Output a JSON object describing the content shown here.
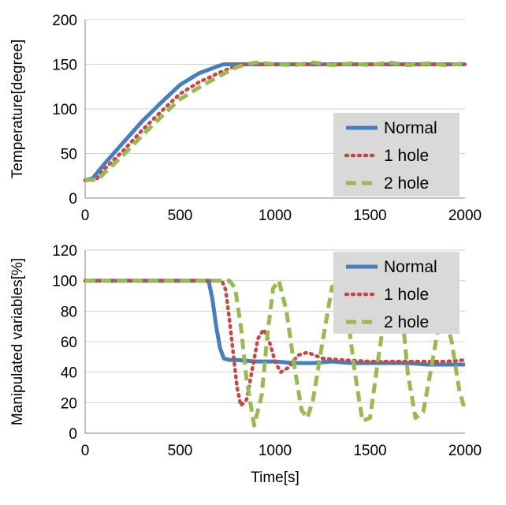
{
  "chart_data": [
    {
      "type": "line",
      "title": "",
      "xlabel": "",
      "ylabel": "Temperature[degree]",
      "xlim": [
        0,
        2000
      ],
      "ylim": [
        0,
        200
      ],
      "xticks": [
        0,
        500,
        1000,
        1500,
        2000
      ],
      "yticks": [
        0,
        50,
        100,
        150,
        200
      ],
      "grid": "horizontal",
      "legend_position": "bottom-right",
      "series": [
        {
          "name": "Normal",
          "color": "#4a7ebb",
          "style": "solid",
          "x": [
            0,
            40,
            100,
            200,
            300,
            400,
            500,
            600,
            700,
            730,
            760,
            800,
            1000,
            1500,
            2000
          ],
          "y": [
            20,
            22,
            38,
            62,
            86,
            107,
            127,
            140,
            148,
            150,
            150,
            150,
            150,
            150,
            150
          ]
        },
        {
          "name": "1 hole",
          "color": "#be4b48",
          "style": "dotted",
          "x": [
            0,
            60,
            100,
            200,
            300,
            400,
            500,
            600,
            700,
            780,
            820,
            900,
            1000,
            1500,
            2000
          ],
          "y": [
            20,
            21,
            32,
            53,
            76,
            97,
            117,
            130,
            140,
            147,
            150,
            150,
            150,
            150,
            150
          ]
        },
        {
          "name": "2 hole",
          "color": "#98b954",
          "style": "dashed",
          "x": [
            0,
            70,
            100,
            200,
            300,
            400,
            500,
            600,
            700,
            800,
            850,
            900,
            1000,
            1100,
            1200,
            1300,
            1400,
            1500,
            1600,
            1700,
            1800,
            1900,
            2000
          ],
          "y": [
            20,
            21,
            28,
            48,
            70,
            91,
            111,
            124,
            136,
            147,
            150,
            152,
            150,
            149,
            152,
            149,
            151,
            149,
            152,
            149,
            151,
            149,
            151
          ]
        }
      ]
    },
    {
      "type": "line",
      "title": "",
      "xlabel": "Time[s]",
      "ylabel": "Manipulated variables[%]",
      "xlim": [
        0,
        2000
      ],
      "ylim": [
        0,
        120
      ],
      "xticks": [
        0,
        500,
        1000,
        1500,
        2000
      ],
      "yticks": [
        0,
        20,
        40,
        60,
        80,
        100,
        120
      ],
      "grid": "horizontal",
      "legend_position": "top-right",
      "series": [
        {
          "name": "Normal",
          "color": "#4a7ebb",
          "style": "solid",
          "x": [
            0,
            650,
            670,
            690,
            710,
            730,
            760,
            800,
            900,
            1000,
            1100,
            1200,
            1300,
            1400,
            1500,
            1600,
            1700,
            1800,
            1900,
            2000
          ],
          "y": [
            100,
            100,
            88,
            70,
            56,
            49,
            48,
            48,
            47,
            47,
            46,
            46,
            47,
            46,
            46,
            46,
            46,
            45,
            45,
            45
          ]
        },
        {
          "name": "1 hole",
          "color": "#be4b48",
          "style": "dotted",
          "x": [
            0,
            720,
            740,
            760,
            780,
            800,
            820,
            850,
            880,
            910,
            940,
            970,
            1000,
            1030,
            1070,
            1120,
            1170,
            1250,
            1350,
            1500,
            1650,
            1800,
            1900,
            2000
          ],
          "y": [
            100,
            100,
            94,
            74,
            52,
            30,
            18,
            22,
            42,
            62,
            68,
            60,
            47,
            40,
            43,
            51,
            53,
            49,
            48,
            47,
            47,
            47,
            47,
            48
          ]
        },
        {
          "name": "2 hole",
          "color": "#98b954",
          "style": "dashed",
          "x": [
            0,
            760,
            790,
            820,
            850,
            890,
            930,
            960,
            990,
            1020,
            1060,
            1100,
            1140,
            1170,
            1200,
            1250,
            1300,
            1360,
            1420,
            1460,
            1500,
            1550,
            1600,
            1660,
            1700,
            1740,
            1780,
            1830,
            1880,
            1930,
            1970,
            2000
          ],
          "y": [
            100,
            100,
            95,
            70,
            35,
            5,
            25,
            65,
            95,
            100,
            80,
            45,
            15,
            10,
            22,
            60,
            96,
            98,
            40,
            8,
            10,
            55,
            95,
            90,
            38,
            10,
            14,
            48,
            85,
            60,
            28,
            15
          ]
        }
      ]
    }
  ]
}
